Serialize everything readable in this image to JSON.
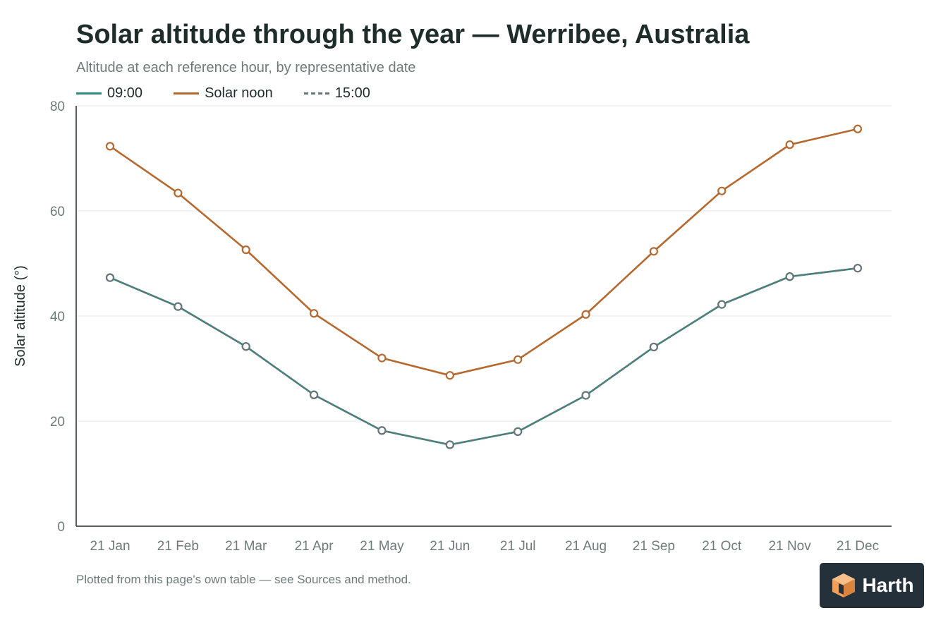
{
  "chart_data": {
    "type": "line",
    "title": "Solar altitude through the year — Werribee, Australia",
    "subtitle": "Altitude at each reference hour, by representative date",
    "ylabel": "Solar altitude (°)",
    "xlabel": "",
    "ylim": [
      0,
      80
    ],
    "yticks": [
      "0",
      "20",
      "40",
      "60",
      "80"
    ],
    "grid": true,
    "legend_placement": "top-left",
    "categories": [
      "21 Jan",
      "21 Feb",
      "21 Mar",
      "21 Apr",
      "21 May",
      "21 Jun",
      "21 Jul",
      "21 Aug",
      "21 Sep",
      "21 Oct",
      "21 Nov",
      "21 Dec"
    ],
    "series": [
      {
        "name": "09:00",
        "color": "#2e8a7e",
        "style": "solid",
        "values": [
          47.3,
          41.8,
          34.2,
          25.0,
          18.2,
          15.5,
          18.0,
          24.9,
          34.1,
          42.2,
          47.5,
          49.1
        ]
      },
      {
        "name": "Solar noon",
        "color": "#b5692e",
        "style": "solid",
        "values": [
          72.3,
          63.4,
          52.6,
          40.5,
          32.0,
          28.7,
          31.7,
          40.3,
          52.3,
          63.8,
          72.6,
          75.6
        ]
      },
      {
        "name": "15:00",
        "color": "#66767a",
        "style": "dashed",
        "values": [
          47.3,
          41.8,
          34.2,
          25.0,
          18.2,
          15.5,
          18.0,
          24.9,
          34.1,
          42.2,
          47.5,
          49.1
        ]
      }
    ],
    "footnote": "Plotted from this page's own table — see Sources and method."
  },
  "brand": {
    "name": "Harth",
    "logo_icon": "cube-logo-icon",
    "colors": {
      "logo_bg": "#25313a",
      "logo_mark": "#f0a05a"
    }
  }
}
